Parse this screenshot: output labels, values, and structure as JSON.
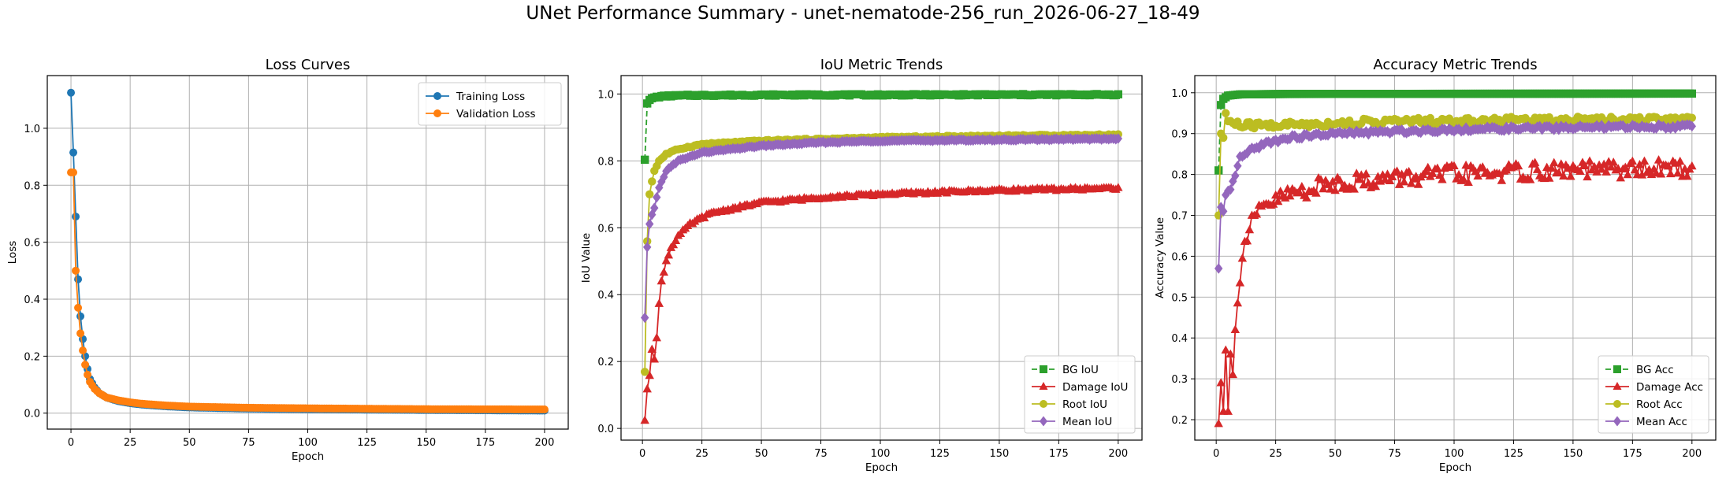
{
  "suptitle": "UNet Performance Summary - unet-nematode-256_run_2026-06-27_18-49",
  "chart_data": [
    {
      "type": "line",
      "title": "Loss Curves",
      "xlabel": "Epoch",
      "ylabel": "Loss",
      "xlim": [
        -10,
        210
      ],
      "ylim": [
        -0.056,
        1.185
      ],
      "xticks": [
        0,
        25,
        50,
        75,
        100,
        125,
        150,
        175,
        200
      ],
      "yticks": [
        0.0,
        0.2,
        0.4,
        0.6,
        0.8,
        1.0
      ],
      "tick_decimals": 1,
      "grid": true,
      "legend": "upper right",
      "x_range": [
        0,
        200
      ],
      "series": [
        {
          "name": "Training Loss",
          "color": "#1f77b4",
          "marker": "o",
          "dash": "",
          "keypoints": [
            [
              0,
              1.125
            ],
            [
              1,
              0.915
            ],
            [
              2,
              0.69
            ],
            [
              3,
              0.47
            ],
            [
              4,
              0.34
            ],
            [
              5,
              0.26
            ],
            [
              6,
              0.2
            ],
            [
              7,
              0.155
            ],
            [
              8,
              0.12
            ],
            [
              10,
              0.09
            ],
            [
              12,
              0.07
            ],
            [
              15,
              0.055
            ],
            [
              20,
              0.042
            ],
            [
              25,
              0.035
            ],
            [
              30,
              0.03
            ],
            [
              40,
              0.024
            ],
            [
              50,
              0.02
            ],
            [
              75,
              0.016
            ],
            [
              100,
              0.014
            ],
            [
              150,
              0.011
            ],
            [
              200,
              0.009
            ]
          ]
        },
        {
          "name": "Validation Loss",
          "color": "#ff7f0e",
          "marker": "o",
          "dash": "",
          "keypoints": [
            [
              1,
              0.845
            ],
            [
              2,
              0.5
            ],
            [
              3,
              0.37
            ],
            [
              4,
              0.28
            ],
            [
              5,
              0.22
            ],
            [
              6,
              0.17
            ],
            [
              7,
              0.135
            ],
            [
              8,
              0.11
            ],
            [
              10,
              0.085
            ],
            [
              12,
              0.07
            ],
            [
              15,
              0.055
            ],
            [
              20,
              0.045
            ],
            [
              25,
              0.038
            ],
            [
              30,
              0.033
            ],
            [
              40,
              0.027
            ],
            [
              50,
              0.023
            ],
            [
              75,
              0.019
            ],
            [
              100,
              0.017
            ],
            [
              150,
              0.014
            ],
            [
              200,
              0.013
            ]
          ]
        }
      ]
    },
    {
      "type": "line",
      "title": "IoU Metric Trends",
      "xlabel": "Epoch",
      "ylabel": "IoU Value",
      "xlim": [
        -9,
        210
      ],
      "ylim": [
        -0.035,
        1.055
      ],
      "xticks": [
        0,
        25,
        50,
        75,
        100,
        125,
        150,
        175,
        200
      ],
      "yticks": [
        0.0,
        0.2,
        0.4,
        0.6,
        0.8,
        1.0
      ],
      "tick_decimals": 1,
      "grid": true,
      "legend": "lower right",
      "x_range": [
        1,
        200
      ],
      "series": [
        {
          "name": "BG IoU",
          "color": "#2ca02c",
          "marker": "s",
          "dash": "7,4",
          "keypoints": [
            [
              1,
              0.805
            ],
            [
              2,
              0.97
            ],
            [
              3,
              0.982
            ],
            [
              5,
              0.99
            ],
            [
              10,
              0.994
            ],
            [
              20,
              0.996
            ],
            [
              50,
              0.997
            ],
            [
              200,
              0.998
            ]
          ]
        },
        {
          "name": "Damage IoU",
          "color": "#d62728",
          "marker": "^",
          "dash": "",
          "keypoints": [
            [
              1,
              0.02
            ],
            [
              2,
              0.12
            ],
            [
              3,
              0.16
            ],
            [
              4,
              0.24
            ],
            [
              5,
              0.21
            ],
            [
              6,
              0.27
            ],
            [
              7,
              0.37
            ],
            [
              8,
              0.44
            ],
            [
              10,
              0.5
            ],
            [
              12,
              0.54
            ],
            [
              15,
              0.575
            ],
            [
              20,
              0.61
            ],
            [
              25,
              0.63
            ],
            [
              30,
              0.645
            ],
            [
              40,
              0.66
            ],
            [
              50,
              0.675
            ],
            [
              75,
              0.69
            ],
            [
              100,
              0.7
            ],
            [
              150,
              0.712
            ],
            [
              200,
              0.718
            ]
          ]
        },
        {
          "name": "Root IoU",
          "color": "#bcbd22",
          "marker": "o",
          "dash": "",
          "keypoints": [
            [
              1,
              0.17
            ],
            [
              2,
              0.56
            ],
            [
              3,
              0.7
            ],
            [
              4,
              0.74
            ],
            [
              5,
              0.77
            ],
            [
              7,
              0.8
            ],
            [
              10,
              0.82
            ],
            [
              15,
              0.835
            ],
            [
              25,
              0.85
            ],
            [
              50,
              0.86
            ],
            [
              100,
              0.87
            ],
            [
              150,
              0.875
            ],
            [
              200,
              0.878
            ]
          ]
        },
        {
          "name": "Mean IoU",
          "color": "#9467bd",
          "marker": "D",
          "dash": "",
          "keypoints": [
            [
              1,
              0.33
            ],
            [
              2,
              0.54
            ],
            [
              3,
              0.61
            ],
            [
              4,
              0.64
            ],
            [
              5,
              0.66
            ],
            [
              7,
              0.72
            ],
            [
              10,
              0.77
            ],
            [
              15,
              0.8
            ],
            [
              25,
              0.825
            ],
            [
              50,
              0.845
            ],
            [
              75,
              0.855
            ],
            [
              100,
              0.86
            ],
            [
              150,
              0.863
            ],
            [
              200,
              0.866
            ]
          ]
        }
      ]
    },
    {
      "type": "line",
      "title": "Accuracy Metric Trends",
      "xlabel": "Epoch",
      "ylabel": "Accuracy Value",
      "xlim": [
        -9,
        210
      ],
      "ylim": [
        0.15,
        1.042
      ],
      "xticks": [
        0,
        25,
        50,
        75,
        100,
        125,
        150,
        175,
        200
      ],
      "yticks": [
        0.2,
        0.3,
        0.4,
        0.5,
        0.6,
        0.7,
        0.8,
        0.9,
        1.0
      ],
      "tick_decimals": 1,
      "grid": true,
      "legend": "lower right",
      "x_range": [
        1,
        200
      ],
      "series": [
        {
          "name": "BG Acc",
          "color": "#2ca02c",
          "marker": "s",
          "dash": "7,4",
          "keypoints": [
            [
              1,
              0.81
            ],
            [
              2,
              0.97
            ],
            [
              3,
              0.985
            ],
            [
              5,
              0.993
            ],
            [
              10,
              0.996
            ],
            [
              30,
              0.997
            ],
            [
              200,
              0.998
            ]
          ]
        },
        {
          "name": "Damage Acc",
          "color": "#d62728",
          "marker": "^",
          "dash": "",
          "keypoints": [
            [
              1,
              0.19
            ],
            [
              2,
              0.29
            ],
            [
              3,
              0.22
            ],
            [
              4,
              0.37
            ],
            [
              5,
              0.22
            ],
            [
              6,
              0.36
            ],
            [
              7,
              0.31
            ],
            [
              8,
              0.42
            ],
            [
              10,
              0.55
            ],
            [
              12,
              0.63
            ],
            [
              15,
              0.68
            ],
            [
              20,
              0.72
            ],
            [
              30,
              0.75
            ],
            [
              50,
              0.78
            ],
            [
              75,
              0.79
            ],
            [
              100,
              0.8
            ],
            [
              150,
              0.81
            ],
            [
              200,
              0.815
            ]
          ]
        },
        {
          "name": "Root Acc",
          "color": "#bcbd22",
          "marker": "o",
          "dash": "",
          "keypoints": [
            [
              1,
              0.7
            ],
            [
              2,
              0.9
            ],
            [
              3,
              0.89
            ],
            [
              4,
              0.95
            ],
            [
              5,
              0.93
            ],
            [
              10,
              0.92
            ],
            [
              20,
              0.92
            ],
            [
              50,
              0.925
            ],
            [
              75,
              0.93
            ],
            [
              100,
              0.93
            ],
            [
              150,
              0.935
            ],
            [
              200,
              0.935
            ]
          ]
        },
        {
          "name": "Mean Acc",
          "color": "#9467bd",
          "marker": "D",
          "dash": "",
          "keypoints": [
            [
              1,
              0.57
            ],
            [
              2,
              0.72
            ],
            [
              3,
              0.71
            ],
            [
              4,
              0.75
            ],
            [
              6,
              0.76
            ],
            [
              8,
              0.8
            ],
            [
              10,
              0.84
            ],
            [
              15,
              0.86
            ],
            [
              20,
              0.875
            ],
            [
              30,
              0.89
            ],
            [
              50,
              0.9
            ],
            [
              75,
              0.905
            ],
            [
              100,
              0.91
            ],
            [
              150,
              0.915
            ],
            [
              200,
              0.918
            ]
          ]
        }
      ]
    }
  ]
}
